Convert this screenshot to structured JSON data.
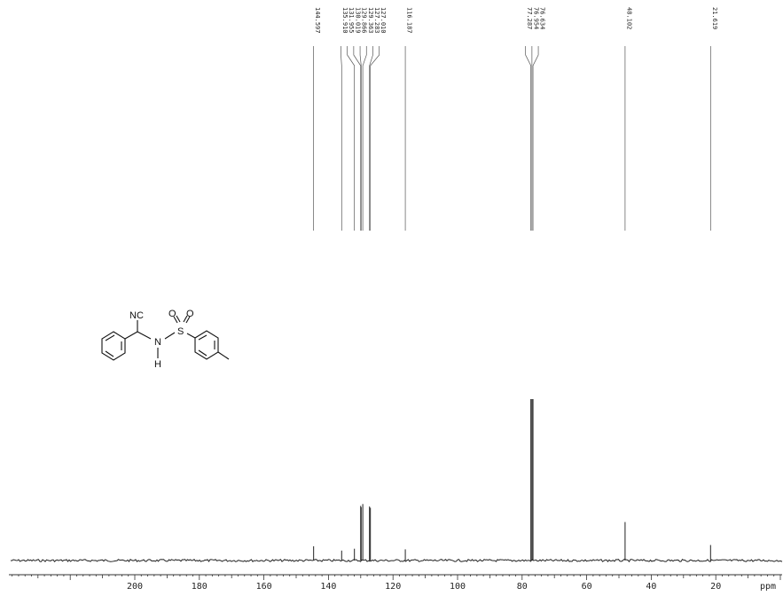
{
  "chart_data": {
    "type": "line",
    "title": "",
    "xlabel": "ppm",
    "ylabel": "",
    "x_reversed": true,
    "xlim": [
      220,
      0
    ],
    "grid": false,
    "x_ticks": [
      "200",
      "180",
      "160",
      "140",
      "120",
      "100",
      "80",
      "60",
      "40",
      "20"
    ],
    "peaks": [
      {
        "ppm": 144.597,
        "label": "144.597",
        "height": 0.23
      },
      {
        "ppm": 135.91,
        "label": "135.910",
        "height": 0.16
      },
      {
        "ppm": 131.955,
        "label": "131.955",
        "height": 0.19
      },
      {
        "ppm": 130.019,
        "label": "130.019",
        "height": 0.88
      },
      {
        "ppm": 129.866,
        "label": "129.866",
        "height": 0.86
      },
      {
        "ppm": 129.363,
        "label": "129.363",
        "height": 0.91
      },
      {
        "ppm": 127.283,
        "label": "127.283",
        "height": 0.87
      },
      {
        "ppm": 127.01,
        "label": "127.010",
        "height": 0.85
      },
      {
        "ppm": 116.187,
        "label": "116.187",
        "height": 0.18
      },
      {
        "ppm": 77.287,
        "label": "77.287",
        "height": 2.6
      },
      {
        "ppm": 76.954,
        "label": "76.954",
        "height": 2.6
      },
      {
        "ppm": 76.634,
        "label": "76.634",
        "height": 2.6
      },
      {
        "ppm": 48.102,
        "label": "48.102",
        "height": 0.62
      },
      {
        "ppm": 21.619,
        "label": "21.619",
        "height": 0.25
      }
    ]
  },
  "molecule": {
    "labels": {
      "nitrile": "NC",
      "nitrogen": "N",
      "hydrogen": "H",
      "sulfur": "S",
      "oxygen_1": "O",
      "oxygen_2": "O"
    }
  }
}
